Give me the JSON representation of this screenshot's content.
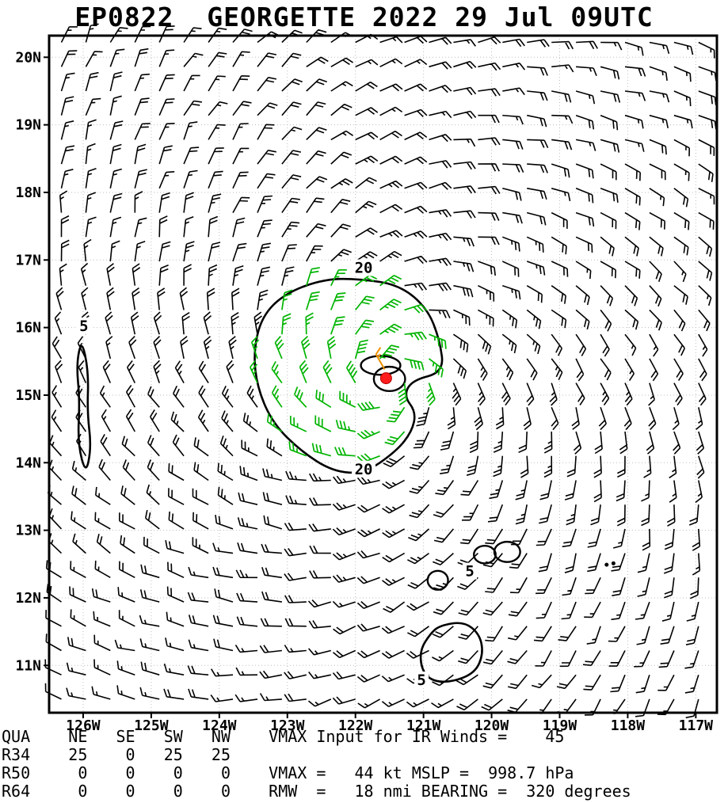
{
  "header": {
    "title": "EP0822  GEORGETTE 2022 29 Jul 09UTC"
  },
  "chart_data": {
    "type": "wind-barb-map",
    "title": "EP0822  GEORGETTE 2022 29 Jul 09UTC",
    "description": "Tropical cyclone surface wind analysis: wind barbs (kt) with isotach contours (5 and 20 kt) around storm center",
    "storm": {
      "atcf_id": "EP0822",
      "name": "GEORGETTE",
      "valid_time": "2022 29 Jul 09UTC",
      "vmax_input_ir_kt": 45,
      "vmax_kt": 44,
      "mslp_hpa": 998.7,
      "rmw_nmi": 18,
      "bearing_deg": 320
    },
    "center_marker": {
      "lon": -121.55,
      "lat": 15.25,
      "color": "#ff1d1d",
      "radius_px": 7
    },
    "axes": {
      "lon_range": [
        -126.5,
        -116.69
      ],
      "lat_range": [
        10.3,
        20.32
      ],
      "grid": "dotted",
      "lon_ticks": [
        {
          "label": "126W",
          "value": -126
        },
        {
          "label": "125W",
          "value": -125
        },
        {
          "label": "124W",
          "value": -124
        },
        {
          "label": "123W",
          "value": -123
        },
        {
          "label": "122W",
          "value": -122
        },
        {
          "label": "121W",
          "value": -121
        },
        {
          "label": "120W",
          "value": -120
        },
        {
          "label": "119W",
          "value": -119
        },
        {
          "label": "118W",
          "value": -118
        },
        {
          "label": "117W",
          "value": -117
        }
      ],
      "lat_ticks": [
        {
          "label": "20N",
          "value": 20
        },
        {
          "label": "19N",
          "value": 19
        },
        {
          "label": "18N",
          "value": 18
        },
        {
          "label": "17N",
          "value": 17
        },
        {
          "label": "16N",
          "value": 16
        },
        {
          "label": "15N",
          "value": 15
        },
        {
          "label": "14N",
          "value": 14
        },
        {
          "label": "13N",
          "value": 13
        },
        {
          "label": "12N",
          "value": 12
        },
        {
          "label": "11N",
          "value": 11
        }
      ]
    },
    "wind_field": {
      "note": "cyclonic (counterclockwise) vortex flow reconstructed from storm parameters",
      "center": {
        "lon": -121.55,
        "lat": 15.25
      },
      "vmax_kt": 45,
      "rmw_deg": 0.3,
      "inflow_deg": 25,
      "decay_exp": 0.33,
      "min_kt": 13,
      "spacing_deg": 0.36,
      "lon_offset": 0.18,
      "lat_offset": 0.2,
      "green_ellipse": {
        "cx": -122.15,
        "cy": 15.4,
        "rx": 1.32,
        "ry": 1.47
      }
    },
    "special_barbs": [
      {
        "lon": -121.57,
        "lat": 15.38,
        "speed_kt": 13,
        "from_deg": 330,
        "color": "#ef9100"
      }
    ],
    "contours": [
      {
        "level": 20,
        "type": "polygon",
        "points": [
          [
            -121.93,
            16.72
          ],
          [
            -121.35,
            16.63
          ],
          [
            -120.94,
            16.28
          ],
          [
            -120.76,
            15.81
          ],
          [
            -120.7,
            15.34
          ],
          [
            -121.17,
            15.22
          ],
          [
            -121.29,
            14.99
          ],
          [
            -121.11,
            14.75
          ],
          [
            -121.17,
            14.46
          ],
          [
            -121.4,
            14.17
          ],
          [
            -121.87,
            13.84
          ],
          [
            -122.33,
            13.87
          ],
          [
            -122.8,
            14.17
          ],
          [
            -123.21,
            14.58
          ],
          [
            -123.44,
            15.1
          ],
          [
            -123.5,
            15.63
          ],
          [
            -123.38,
            16.16
          ],
          [
            -123.03,
            16.51
          ],
          [
            -122.45,
            16.72
          ]
        ]
      },
      {
        "level": 20,
        "type": "ellipse",
        "cx": -121.63,
        "cy": 15.44,
        "rx": 0.29,
        "ry": 0.14
      },
      {
        "level": 20,
        "type": "ellipse",
        "cx": -121.5,
        "cy": 15.24,
        "rx": 0.23,
        "ry": 0.18
      },
      {
        "level": 5,
        "type": "polygon",
        "points": [
          [
            -126.02,
            15.83
          ],
          [
            -125.92,
            15.34
          ],
          [
            -125.94,
            14.75
          ],
          [
            -125.88,
            14.23
          ],
          [
            -125.96,
            13.82
          ],
          [
            -126.08,
            14.29
          ],
          [
            -126.05,
            14.93
          ],
          [
            -126.1,
            15.46
          ]
        ]
      },
      {
        "level": 5,
        "type": "polygon",
        "points": [
          [
            -120.76,
            11.59
          ],
          [
            -120.41,
            11.65
          ],
          [
            -120.18,
            11.47
          ],
          [
            -120.12,
            11.18
          ],
          [
            -120.24,
            10.89
          ],
          [
            -120.59,
            10.75
          ],
          [
            -120.88,
            10.77
          ],
          [
            -121.03,
            10.94
          ],
          [
            -121.05,
            11.23
          ],
          [
            -120.9,
            11.47
          ]
        ]
      },
      {
        "level": 5,
        "type": "ellipse",
        "cx": -120.1,
        "cy": 12.64,
        "rx": 0.16,
        "ry": 0.13
      },
      {
        "level": 5,
        "type": "ellipse",
        "cx": -119.77,
        "cy": 12.68,
        "rx": 0.19,
        "ry": 0.15
      },
      {
        "level": 5,
        "type": "ellipse",
        "cx": -120.79,
        "cy": 12.26,
        "rx": 0.15,
        "ry": 0.14
      },
      {
        "level": 5,
        "type": "dot",
        "lon": -118.31,
        "lat": 12.49
      },
      {
        "level": 5,
        "type": "dot",
        "lon": -118.21,
        "lat": 12.51
      }
    ],
    "contour_labels": [
      {
        "text": "20",
        "lon": -121.88,
        "lat": 16.88
      },
      {
        "text": "20",
        "lon": -121.88,
        "lat": 13.9
      },
      {
        "text": "5",
        "lon": -125.99,
        "lat": 16.02
      },
      {
        "text": "5",
        "lon": -120.32,
        "lat": 12.39
      },
      {
        "text": "5",
        "lon": -121.03,
        "lat": 10.78
      }
    ],
    "radii_table": {
      "quadrants": [
        "NE",
        "SE",
        "SW",
        "NW"
      ],
      "rows": [
        {
          "name": "R34",
          "values": [
            25,
            0,
            25,
            25
          ]
        },
        {
          "name": "R50",
          "values": [
            0,
            0,
            0,
            0
          ]
        },
        {
          "name": "R64",
          "values": [
            0,
            0,
            0,
            0
          ]
        }
      ]
    },
    "style": {
      "barb_black": "#000000",
      "barb_green": "#00b400",
      "barb_orange": "#ef9100",
      "contour_color": "#000000",
      "grid_color": "#bdbdbd",
      "center_color": "#ff1d1d"
    }
  },
  "footer": {
    "lines": [
      "QUA    NE   SE   SW   NW    VMAX Input for IR Winds =    45",
      "R34    25    0   25   25",
      "R50     0    0    0    0    VMAX =   44 kt MSLP =  998.7 hPa",
      "R64     0    0    0    0    RMW  =   18 nmi BEARING =  320 degrees"
    ]
  }
}
